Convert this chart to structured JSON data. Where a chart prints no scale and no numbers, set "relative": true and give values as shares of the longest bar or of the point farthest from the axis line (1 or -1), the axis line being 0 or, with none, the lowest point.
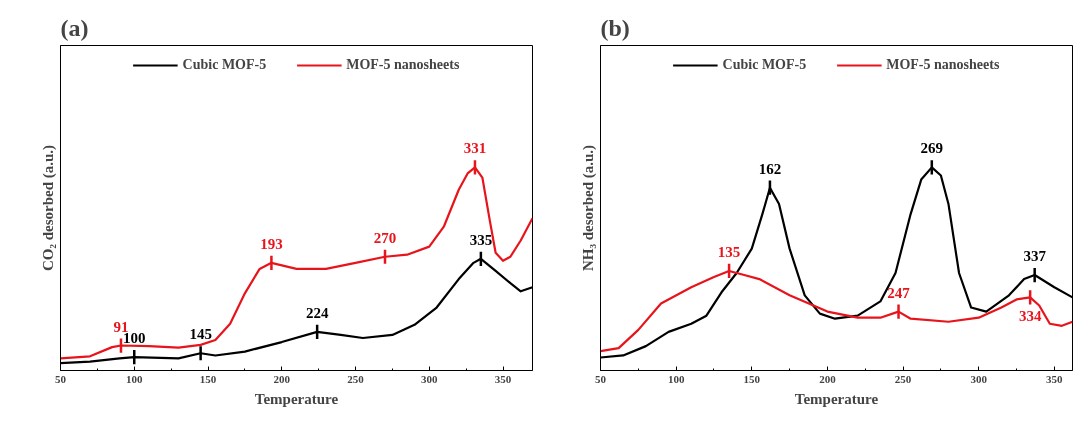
{
  "chart_data": [
    {
      "type": "line",
      "title": "(a)",
      "xlabel": "Temperature",
      "ylabel": "CO₂ desorbed (a.u.)",
      "relative": true,
      "xlim": [
        50,
        370
      ],
      "xticks": [
        50,
        100,
        150,
        200,
        250,
        300,
        350
      ],
      "grid": false,
      "legend": "top",
      "marker": "none",
      "line_style": "solid",
      "series": [
        {
          "name": "Cubic MOF-5",
          "color": "#000000",
          "x": [
            50,
            70,
            90,
            100,
            130,
            145,
            155,
            175,
            200,
            224,
            240,
            255,
            275,
            290,
            305,
            320,
            330,
            335,
            345,
            355,
            362,
            370
          ],
          "values": [
            0.036,
            0.044,
            0.06,
            0.066,
            0.06,
            0.085,
            0.074,
            0.093,
            0.14,
            0.19,
            0.175,
            0.16,
            0.175,
            0.225,
            0.31,
            0.45,
            0.53,
            0.55,
            0.49,
            0.43,
            0.39,
            0.41
          ]
        },
        {
          "name": "MOF-5 nanosheets",
          "color": "#e8141c",
          "x": [
            50,
            70,
            85,
            91,
            110,
            130,
            145,
            155,
            165,
            175,
            185,
            193,
            210,
            230,
            250,
            270,
            285,
            300,
            310,
            320,
            326,
            331,
            336,
            341,
            345,
            350,
            355,
            362,
            370
          ],
          "values": [
            0.06,
            0.07,
            0.115,
            0.123,
            0.12,
            0.113,
            0.126,
            0.15,
            0.23,
            0.38,
            0.5,
            0.53,
            0.5,
            0.5,
            0.53,
            0.56,
            0.57,
            0.61,
            0.71,
            0.89,
            0.97,
            1.0,
            0.95,
            0.74,
            0.58,
            0.54,
            0.56,
            0.64,
            0.75
          ]
        }
      ],
      "annotations": [
        {
          "text": "91",
          "x": 91,
          "y": 0.123
        },
        {
          "text": "100",
          "x": 100,
          "y": 0.066
        },
        {
          "text": "145",
          "x": 145,
          "y": 0.085
        },
        {
          "text": "193",
          "x": 193,
          "y": 0.53
        },
        {
          "text": "224",
          "x": 224,
          "y": 0.19
        },
        {
          "text": "270",
          "x": 270,
          "y": 0.56
        },
        {
          "text": "331",
          "x": 331,
          "y": 1.0
        },
        {
          "text": "335",
          "x": 335,
          "y": 0.55
        }
      ]
    },
    {
      "type": "line",
      "title": "(b)",
      "xlabel": "Temperature",
      "ylabel": "NH₃ desorbed (a.u.)",
      "relative": true,
      "xlim": [
        50,
        362
      ],
      "xticks": [
        50,
        100,
        150,
        200,
        250,
        300,
        350
      ],
      "grid": false,
      "legend": "top",
      "marker": "none",
      "line_style": "solid",
      "series": [
        {
          "name": "Cubic MOF-5",
          "color": "#000000",
          "x": [
            50,
            65,
            80,
            95,
            110,
            120,
            130,
            140,
            150,
            157,
            162,
            168,
            175,
            185,
            195,
            205,
            220,
            235,
            245,
            255,
            262,
            269,
            275,
            280,
            287,
            295,
            305,
            320,
            330,
            337,
            350,
            362
          ],
          "values": [
            0.064,
            0.074,
            0.12,
            0.19,
            0.23,
            0.27,
            0.385,
            0.48,
            0.6,
            0.77,
            0.9,
            0.82,
            0.6,
            0.37,
            0.28,
            0.255,
            0.27,
            0.34,
            0.48,
            0.77,
            0.94,
            1.0,
            0.96,
            0.82,
            0.48,
            0.31,
            0.29,
            0.37,
            0.45,
            0.47,
            0.41,
            0.36
          ]
        },
        {
          "name": "MOF-5 nanosheets",
          "color": "#e8141c",
          "x": [
            50,
            62,
            75,
            90,
            110,
            125,
            135,
            145,
            155,
            175,
            200,
            220,
            235,
            247,
            255,
            280,
            300,
            315,
            325,
            334,
            340,
            347,
            355,
            362
          ],
          "values": [
            0.095,
            0.11,
            0.2,
            0.33,
            0.41,
            0.46,
            0.49,
            0.47,
            0.45,
            0.37,
            0.29,
            0.26,
            0.26,
            0.29,
            0.255,
            0.24,
            0.26,
            0.31,
            0.35,
            0.36,
            0.32,
            0.23,
            0.22,
            0.24
          ]
        }
      ],
      "annotations": [
        {
          "text": "135",
          "x": 135,
          "y": 0.49
        },
        {
          "text": "162",
          "x": 162,
          "y": 0.9
        },
        {
          "text": "247",
          "x": 247,
          "y": 0.29
        },
        {
          "text": "269",
          "x": 269,
          "y": 1.0
        },
        {
          "text": "334",
          "x": 334,
          "y": 0.36
        },
        {
          "text": "337",
          "x": 337,
          "y": 0.47
        }
      ]
    }
  ]
}
